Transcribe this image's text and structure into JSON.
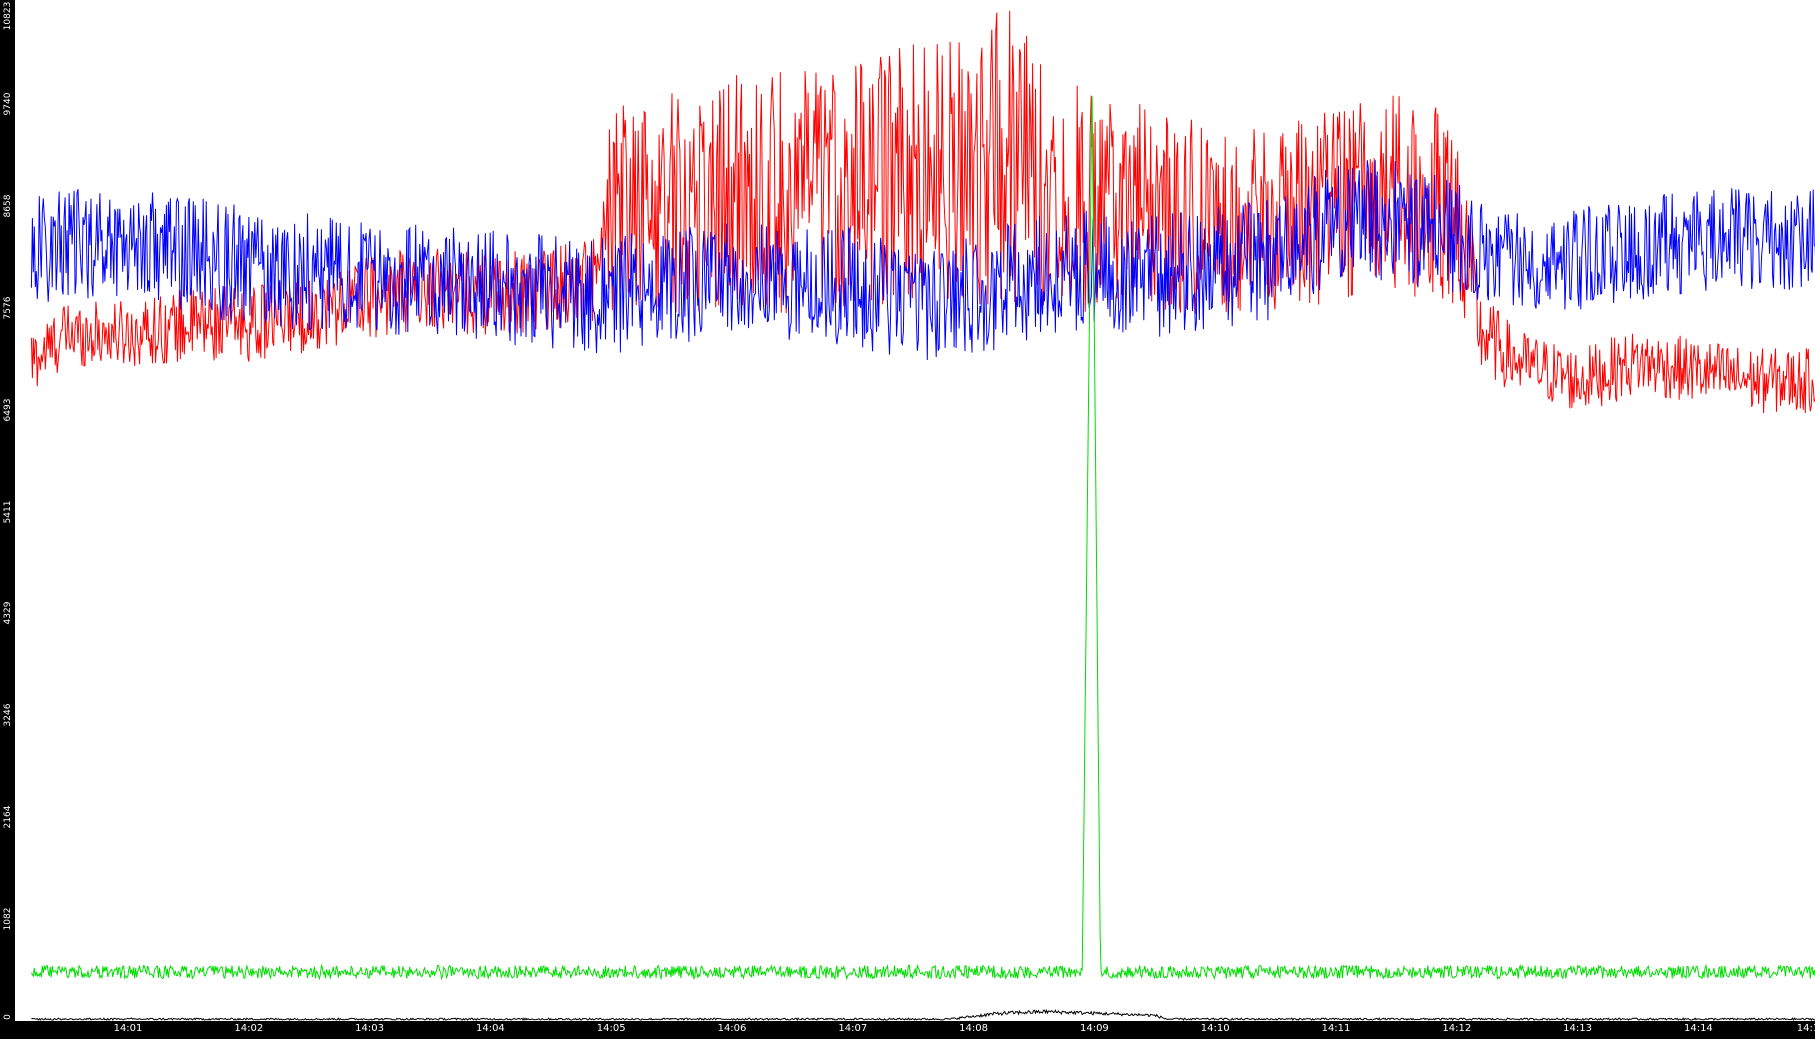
{
  "chart_data": {
    "type": "line",
    "title": "",
    "xlabel": "",
    "ylabel": "",
    "ylim": [
      0,
      10823
    ],
    "grid": false,
    "legend": "none",
    "y_ticks": [
      "0",
      "1082",
      "2164",
      "3246",
      "4329",
      "5411",
      "6493",
      "7576",
      "8658",
      "9740",
      "10823"
    ],
    "x_ticks": [
      "14:01",
      "14:02",
      "14:03",
      "14:04",
      "14:05",
      "14:06",
      "14:07",
      "14:08",
      "14:09",
      "14:10",
      "14:11",
      "14:12",
      "14:13",
      "14:14",
      "14:1"
    ],
    "x_range_minutes": [
      0.2,
      15.0
    ],
    "series": [
      {
        "color": "#ff0000",
        "x": [
          0.2,
          0.5,
          1.0,
          1.5,
          2.0,
          2.5,
          3.0,
          3.5,
          4.0,
          4.5,
          4.9,
          5.0,
          5.5,
          6.0,
          6.5,
          7.0,
          7.5,
          8.0,
          8.3,
          8.6,
          9.0,
          9.5,
          10.0,
          10.5,
          11.0,
          11.5,
          12.0,
          12.2,
          12.5,
          13.0,
          13.5,
          14.0,
          14.5,
          15.0
        ],
        "values": [
          7000,
          7300,
          7300,
          7400,
          7400,
          7500,
          7700,
          7800,
          7700,
          7800,
          7900,
          8600,
          8700,
          8800,
          8800,
          8900,
          9000,
          9100,
          9200,
          8900,
          8700,
          8600,
          8500,
          8500,
          8700,
          8800,
          8600,
          7300,
          7000,
          6800,
          7000,
          6900,
          6800,
          6800
        ],
        "spread": [
          350,
          350,
          350,
          400,
          400,
          400,
          450,
          450,
          450,
          450,
          500,
          1100,
          1200,
          1300,
          1300,
          1300,
          1400,
          1500,
          1600,
          1300,
          1200,
          1100,
          1000,
          1000,
          1100,
          1100,
          1000,
          450,
          350,
          350,
          350,
          350,
          350,
          350
        ]
      },
      {
        "color": "#0000ff",
        "x": [
          0.2,
          1.0,
          2.0,
          3.0,
          4.0,
          5.0,
          6.0,
          7.0,
          7.5,
          8.0,
          8.5,
          9.0,
          9.5,
          10.0,
          10.5,
          11.0,
          11.5,
          12.0,
          12.5,
          13.0,
          13.5,
          14.0,
          14.5,
          15.0
        ],
        "values": [
          8200,
          8300,
          8000,
          7900,
          7800,
          7700,
          7900,
          7800,
          7600,
          7700,
          7900,
          8000,
          7900,
          8000,
          8100,
          8500,
          8500,
          8300,
          8100,
          8100,
          8200,
          8300,
          8300,
          8300
        ],
        "spread": [
          600,
          600,
          650,
          600,
          600,
          650,
          600,
          650,
          600,
          650,
          650,
          650,
          650,
          650,
          650,
          650,
          650,
          600,
          550,
          550,
          550,
          550,
          550,
          550
        ]
      },
      {
        "color": "#00dd00",
        "x": [
          0.2,
          8.9,
          8.98,
          9.05,
          15.0
        ],
        "values": [
          520,
          520,
          10000,
          520,
          520
        ],
        "spread": [
          70,
          70,
          0,
          70,
          70
        ]
      },
      {
        "color": "#000000",
        "x": [
          0.2,
          7.8,
          8.2,
          8.6,
          9.5,
          9.6,
          14.5,
          15.0
        ],
        "values": [
          20,
          20,
          80,
          100,
          60,
          20,
          20,
          20
        ],
        "spread": [
          10,
          10,
          20,
          20,
          15,
          10,
          10,
          10
        ]
      }
    ]
  }
}
